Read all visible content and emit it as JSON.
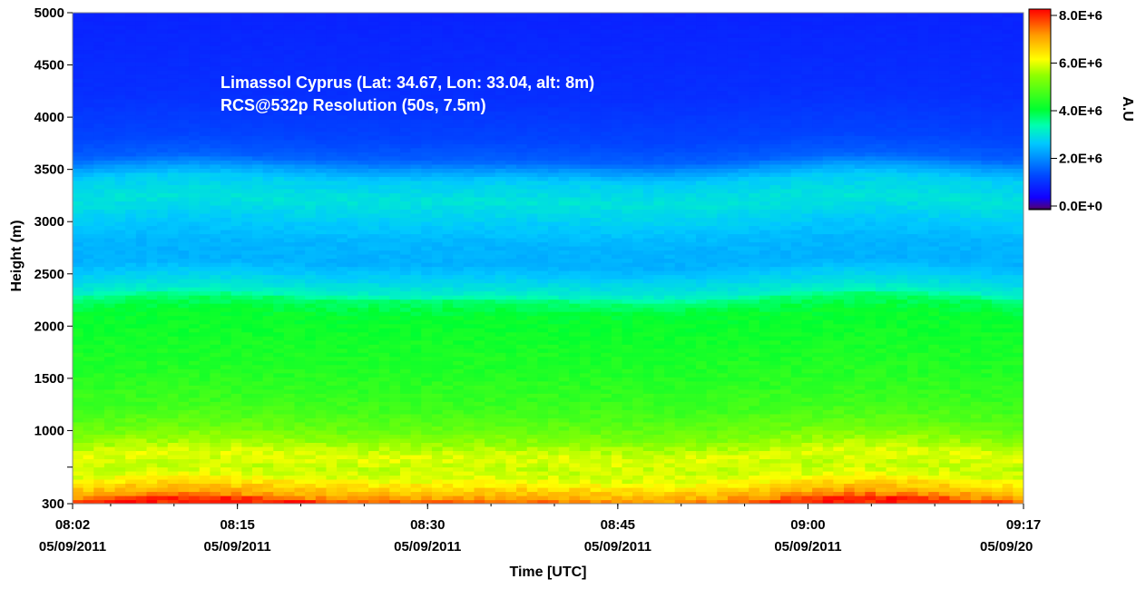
{
  "chart_data": {
    "type": "heatmap",
    "title_lines": [
      "Limassol Cyprus (Lat: 34.67, Lon: 33.04, alt: 8m)",
      "RCS@532p Resolution (50s, 7.5m)"
    ],
    "xlabel": "Time [UTC]",
    "ylabel": "Height (m)",
    "colorbar_label": "A.U",
    "x_ticks": [
      {
        "time": "08:02",
        "date": "05/09/2011"
      },
      {
        "time": "08:15",
        "date": "05/09/2011"
      },
      {
        "time": "08:30",
        "date": "05/09/2011"
      },
      {
        "time": "08:45",
        "date": "05/09/2011"
      },
      {
        "time": "09:00",
        "date": "05/09/2011"
      },
      {
        "time": "09:17",
        "date": "05/09/20"
      }
    ],
    "y_ticks": [
      300,
      1000,
      1500,
      2000,
      2500,
      3000,
      3500,
      4000,
      4500,
      5000
    ],
    "ylim": [
      300,
      5000
    ],
    "xlim": [
      "08:02",
      "09:17"
    ],
    "colorbar_ticks": [
      "8.0E+6",
      "6.0E+6",
      "4.0E+6",
      "2.0E+6",
      "0.0E+0"
    ],
    "colorbar_range": [
      0,
      8000000
    ],
    "profile": {
      "heights": [
        300,
        350,
        450,
        550,
        650,
        750,
        850,
        1000,
        1200,
        1500,
        1800,
        2100,
        2250,
        2300,
        2400,
        2600,
        2800,
        3000,
        3200,
        3400,
        3500,
        3600,
        3800,
        4200,
        5000
      ],
      "values": [
        7800000,
        7000000,
        6400000,
        5800000,
        5650000,
        5850000,
        5500000,
        5000000,
        4600000,
        4350000,
        4200000,
        4050000,
        3700000,
        3200000,
        2900000,
        2400000,
        2450000,
        2700000,
        3000000,
        2700000,
        2200000,
        1600000,
        1300000,
        1050000,
        900000
      ]
    }
  }
}
